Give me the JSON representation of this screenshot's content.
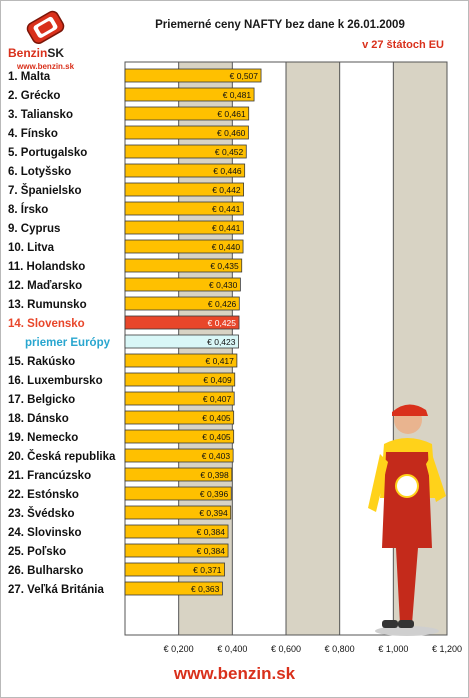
{
  "brand": {
    "name_main": "Benzin",
    "name_suffix": "SK",
    "url": "www.benzin.sk"
  },
  "title": "Priemerné ceny NAFTY bez dane k 26.01.2009",
  "subtitle": "v 27 štátoch EU",
  "footer": "www.benzin.sk",
  "colors": {
    "bar": "#ffc000",
    "bar_highlight": "#e8462a",
    "bar_average": "#d9f7f7",
    "plot_bg": "#d8d3c4",
    "accent": "#d9301b"
  },
  "chart_data": {
    "type": "bar",
    "orientation": "horizontal",
    "title": "Priemerné ceny NAFTY bez dane k 26.01.2009",
    "subtitle": "v 27 štátoch EU",
    "categories": [
      "1. Malta",
      "2. Grécko",
      "3. Taliansko",
      "4. Fínsko",
      "5. Portugalsko",
      "6. Lotyšsko",
      "7. Španielsko",
      "8. Írsko",
      "9. Cyprus",
      "10. Litva",
      "11. Holandsko",
      "12. Maďarsko",
      "13. Rumunsko",
      "14. Slovensko",
      "priemer Európy",
      "15. Rakúsko",
      "16. Luxembursko",
      "17. Belgicko",
      "18. Dánsko",
      "19. Nemecko",
      "20. Česká republika",
      "21. Francúzsko",
      "22. Estónsko",
      "23. Švédsko",
      "24. Slovinsko",
      "25. Poľsko",
      "26. Bulharsko",
      "27. Veľká Británia"
    ],
    "values": [
      0.507,
      0.481,
      0.461,
      0.46,
      0.452,
      0.446,
      0.442,
      0.441,
      0.441,
      0.44,
      0.435,
      0.43,
      0.426,
      0.425,
      0.423,
      0.417,
      0.409,
      0.407,
      0.405,
      0.405,
      0.403,
      0.398,
      0.396,
      0.394,
      0.384,
      0.384,
      0.371,
      0.363
    ],
    "value_labels": [
      "€ 0,507",
      "€ 0,481",
      "€ 0,461",
      "€ 0,460",
      "€ 0,452",
      "€ 0,446",
      "€ 0,442",
      "€ 0,441",
      "€ 0,441",
      "€ 0,440",
      "€ 0,435",
      "€ 0,430",
      "€ 0,426",
      "€ 0,425",
      "€ 0,423",
      "€ 0,417",
      "€ 0,409",
      "€ 0,407",
      "€ 0,405",
      "€ 0,405",
      "€ 0,403",
      "€ 0,398",
      "€ 0,396",
      "€ 0,394",
      "€ 0,384",
      "€ 0,384",
      "€ 0,371",
      "€ 0,363"
    ],
    "highlight_index": 13,
    "average_index": 14,
    "xlim": [
      0,
      1.2
    ],
    "xticks": [
      0.2,
      0.4,
      0.6,
      0.8,
      1.0,
      1.2
    ],
    "xtick_labels": [
      "€ 0,200",
      "€ 0,400",
      "€ 0,600",
      "€ 0,800",
      "€ 1,000",
      "€ 1,200"
    ],
    "grid": true,
    "legend": "none"
  }
}
